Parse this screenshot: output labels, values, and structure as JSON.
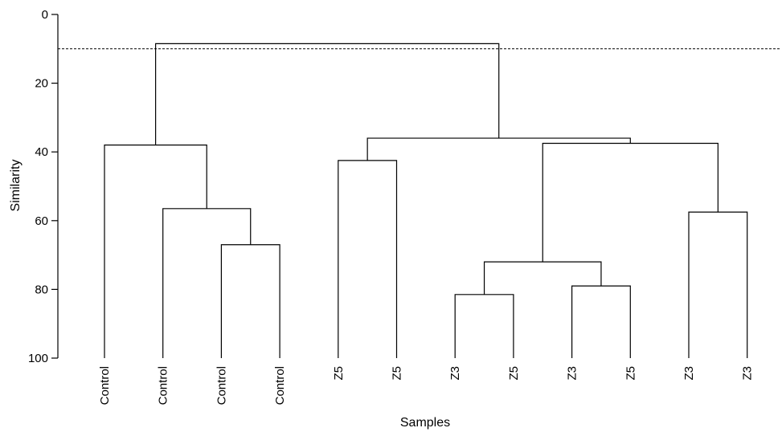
{
  "chart_data": {
    "type": "dendrogram",
    "xlabel": "Samples",
    "ylabel": "Similarity",
    "ylim": [
      0,
      100
    ],
    "y_ticks": [
      0,
      20,
      40,
      60,
      80,
      100
    ],
    "cut_line_similarity": 10,
    "leaves": [
      "Control",
      "Control",
      "Control",
      "Control",
      "Z5",
      "Z5",
      "Z3",
      "Z5",
      "Z3",
      "Z5",
      "Z3",
      "Z3"
    ],
    "merges": [
      {
        "left": "L2",
        "right": "L3",
        "similarity": 67
      },
      {
        "left": "L1",
        "right": "M0",
        "similarity": 56.5
      },
      {
        "left": "L0",
        "right": "M1",
        "similarity": 38
      },
      {
        "left": "L4",
        "right": "L5",
        "similarity": 42.5
      },
      {
        "left": "L6",
        "right": "L7",
        "similarity": 81.5
      },
      {
        "left": "L8",
        "right": "L9",
        "similarity": 79
      },
      {
        "left": "M4",
        "right": "M5",
        "similarity": 72
      },
      {
        "left": "L10",
        "right": "L11",
        "similarity": 57.5
      },
      {
        "left": "M6",
        "right": "M7",
        "similarity": 37.5
      },
      {
        "left": "M3",
        "right": "M8",
        "similarity": 36
      },
      {
        "left": "M2",
        "right": "M9",
        "similarity": 8.5
      }
    ]
  }
}
